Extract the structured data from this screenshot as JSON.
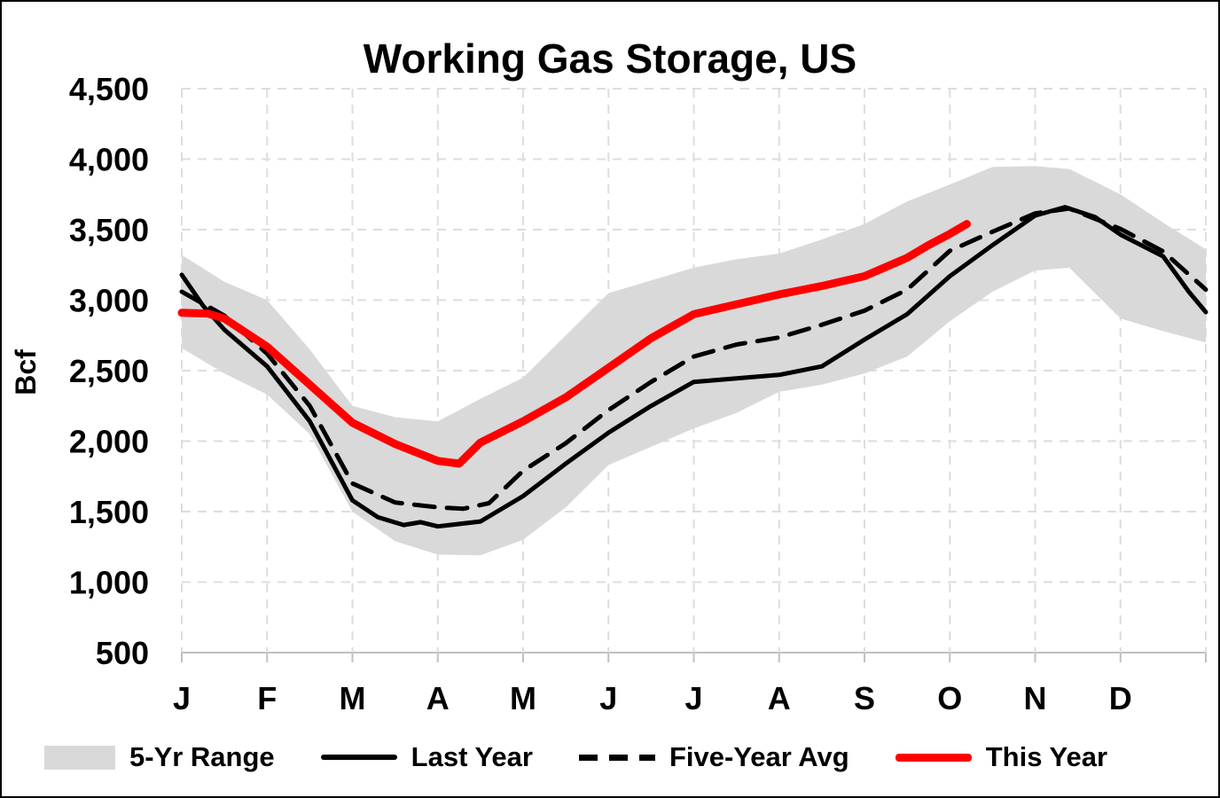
{
  "title": "Working Gas Storage, US",
  "y_axis": {
    "label": "Bcf",
    "tick_labels": [
      "4,500",
      "4,000",
      "3,500",
      "3,000",
      "2,500",
      "2,000",
      "1,500",
      "1,000",
      "500"
    ],
    "tick_values": [
      4500,
      4000,
      3500,
      3000,
      2500,
      2000,
      1500,
      1000,
      500
    ],
    "min": 500,
    "max": 4500,
    "step": 500
  },
  "x_axis": {
    "labels": [
      "J",
      "F",
      "M",
      "A",
      "M",
      "J",
      "J",
      "A",
      "S",
      "O",
      "N",
      "D"
    ]
  },
  "legend": [
    {
      "label": "5-Yr Range",
      "type": "band",
      "color": "#D9D9D9"
    },
    {
      "label": "Last Year",
      "type": "solid-line",
      "color": "#000000"
    },
    {
      "label": "Five-Year Avg",
      "type": "dashed-line",
      "color": "#000000"
    },
    {
      "label": "This Year",
      "type": "solid-line",
      "color": "#FF0000"
    }
  ],
  "colors": {
    "band": "#D9D9D9",
    "last_year": "#000000",
    "five_year_avg": "#000000",
    "this_year": "#FF0000",
    "gridline": "#DDDDDD",
    "axis_line": "#C0C0C0",
    "tick": "#C0C0C0"
  },
  "chart_data": {
    "type": "line",
    "title": "Working Gas Storage, US",
    "ylabel": "Bcf",
    "unit": "Bcf",
    "x_unit": "months Jan-Dec as 0..12 (fraction = position within month)",
    "ylim": [
      500,
      4500
    ],
    "grid": "dashed light gray, horizontal every 500 Bcf and vertical at each month",
    "legend_position": "bottom",
    "band": {
      "name": "5-Yr Range",
      "points_t_lo_hi": [
        [
          0,
          2660,
          3320
        ],
        [
          0.5,
          2480,
          3130
        ],
        [
          1,
          2330,
          3000
        ],
        [
          1.5,
          2050,
          2650
        ],
        [
          2,
          1500,
          2250
        ],
        [
          2.5,
          1290,
          2170
        ],
        [
          3,
          1195,
          2140
        ],
        [
          3.5,
          1190,
          2300
        ],
        [
          4,
          1300,
          2450
        ],
        [
          4.5,
          1530,
          2750
        ],
        [
          5,
          1830,
          3050
        ],
        [
          5.5,
          1960,
          3140
        ],
        [
          6,
          2090,
          3230
        ],
        [
          6.5,
          2200,
          3290
        ],
        [
          7,
          2350,
          3330
        ],
        [
          7.5,
          2400,
          3430
        ],
        [
          8,
          2480,
          3540
        ],
        [
          8.5,
          2600,
          3700
        ],
        [
          9,
          2850,
          3820
        ],
        [
          9.5,
          3060,
          3945
        ],
        [
          10,
          3210,
          3950
        ],
        [
          10.4,
          3230,
          3930
        ],
        [
          11,
          2870,
          3750
        ],
        [
          11.5,
          2780,
          3550
        ],
        [
          12,
          2700,
          3360
        ]
      ]
    },
    "series": [
      {
        "name": "Last Year",
        "style": "solid",
        "color": "#000000",
        "points": [
          [
            0,
            3180
          ],
          [
            0.25,
            2960
          ],
          [
            0.5,
            2790
          ],
          [
            1,
            2530
          ],
          [
            1.5,
            2140
          ],
          [
            2,
            1580
          ],
          [
            2.3,
            1460
          ],
          [
            2.6,
            1405
          ],
          [
            2.8,
            1425
          ],
          [
            3,
            1395
          ],
          [
            3.5,
            1430
          ],
          [
            4,
            1610
          ],
          [
            4.5,
            1840
          ],
          [
            5,
            2060
          ],
          [
            5.5,
            2250
          ],
          [
            6,
            2420
          ],
          [
            6.5,
            2445
          ],
          [
            7,
            2470
          ],
          [
            7.5,
            2530
          ],
          [
            8,
            2720
          ],
          [
            8.5,
            2900
          ],
          [
            9,
            3170
          ],
          [
            9.5,
            3390
          ],
          [
            10,
            3600
          ],
          [
            10.35,
            3660
          ],
          [
            10.7,
            3590
          ],
          [
            11,
            3465
          ],
          [
            11.5,
            3310
          ],
          [
            11.8,
            3060
          ],
          [
            12,
            2915
          ]
        ]
      },
      {
        "name": "Five-Year Avg",
        "style": "dashed",
        "color": "#000000",
        "points": [
          [
            0,
            3060
          ],
          [
            0.5,
            2890
          ],
          [
            1,
            2620
          ],
          [
            1.5,
            2250
          ],
          [
            2,
            1700
          ],
          [
            2.5,
            1565
          ],
          [
            3,
            1530
          ],
          [
            3.3,
            1520
          ],
          [
            3.6,
            1560
          ],
          [
            4,
            1790
          ],
          [
            4.5,
            1985
          ],
          [
            5,
            2220
          ],
          [
            5.5,
            2420
          ],
          [
            6,
            2600
          ],
          [
            6.5,
            2685
          ],
          [
            7,
            2735
          ],
          [
            7.5,
            2825
          ],
          [
            8,
            2925
          ],
          [
            8.5,
            3075
          ],
          [
            9,
            3350
          ],
          [
            9.5,
            3485
          ],
          [
            10,
            3615
          ],
          [
            10.4,
            3650
          ],
          [
            11,
            3505
          ],
          [
            11.5,
            3345
          ],
          [
            12,
            3075
          ]
        ]
      },
      {
        "name": "This Year",
        "style": "solid-thick",
        "color": "#FF0000",
        "points": [
          [
            0,
            2910
          ],
          [
            0.3,
            2905
          ],
          [
            0.5,
            2870
          ],
          [
            1,
            2670
          ],
          [
            1.5,
            2400
          ],
          [
            2,
            2130
          ],
          [
            2.5,
            1980
          ],
          [
            3,
            1860
          ],
          [
            3.25,
            1840
          ],
          [
            3.5,
            1990
          ],
          [
            4,
            2140
          ],
          [
            4.5,
            2310
          ],
          [
            5,
            2520
          ],
          [
            5.5,
            2730
          ],
          [
            6,
            2900
          ],
          [
            6.5,
            2970
          ],
          [
            7,
            3040
          ],
          [
            7.5,
            3100
          ],
          [
            8,
            3170
          ],
          [
            8.5,
            3300
          ],
          [
            8.75,
            3390
          ],
          [
            9,
            3470
          ],
          [
            9.2,
            3540
          ]
        ]
      }
    ]
  }
}
